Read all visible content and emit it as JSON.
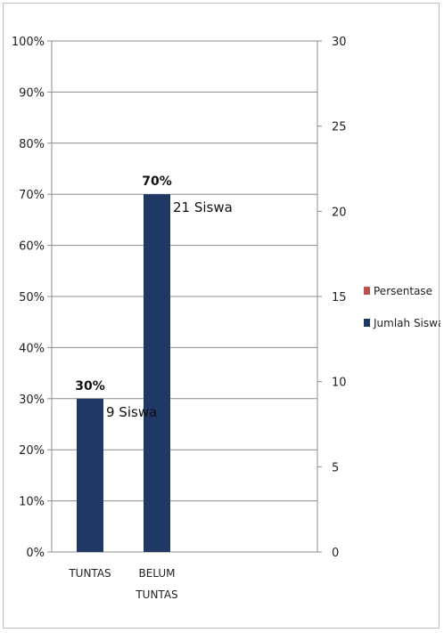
{
  "chart_data": {
    "type": "bar",
    "categories": [
      [
        "TUNTAS"
      ],
      [
        "BELUM",
        "TUNTAS"
      ]
    ],
    "series": [
      {
        "name": "Persentase",
        "values": [
          30,
          70
        ],
        "unit": "%",
        "color": "#c0504d",
        "axis": "left"
      },
      {
        "name": "Jumlah Siswa",
        "values": [
          9,
          21
        ],
        "color": "#1f3864",
        "axis": "right"
      }
    ],
    "y_left": {
      "min": 0,
      "max": 100,
      "ticks": [
        "0%",
        "10%",
        "20%",
        "30%",
        "40%",
        "50%",
        "60%",
        "70%",
        "80%",
        "90%",
        "100%"
      ]
    },
    "y_right": {
      "min": 0,
      "max": 30,
      "ticks": [
        "0",
        "5",
        "10",
        "15",
        "20",
        "25",
        "30"
      ]
    },
    "data_labels": [
      "30%",
      "70%"
    ],
    "count_labels": [
      "9 Siswa",
      "21 Siswa"
    ],
    "legend": {
      "position": "right",
      "items": [
        "Persentase",
        "Jumlah Siswa"
      ]
    },
    "grid": true
  }
}
